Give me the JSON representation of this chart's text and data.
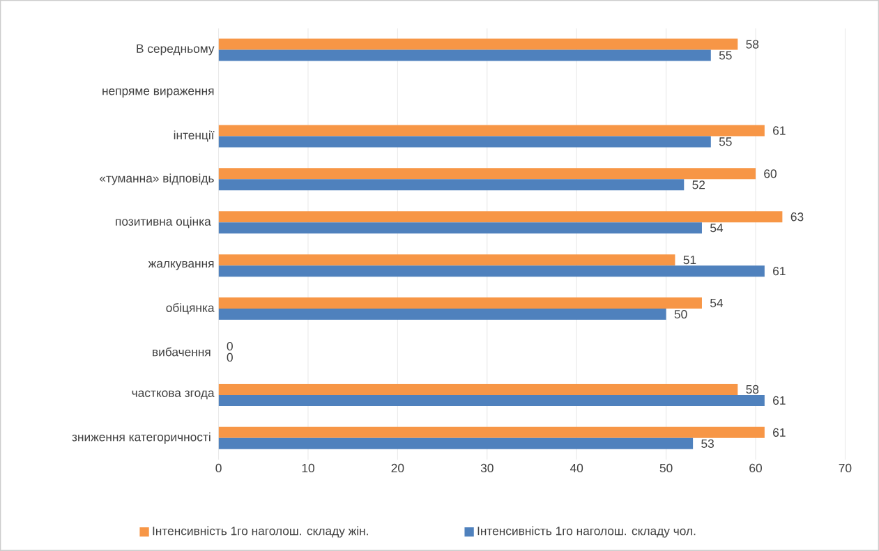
{
  "chart_data": {
    "type": "bar",
    "orientation": "horizontal",
    "categories": [
      "В середньому",
      "непряме вираження",
      "інтенції",
      "«туманна» відповідь",
      "позитивна оцінка ",
      "жалкування",
      "обіцянка",
      "вибачення ",
      "часткова згода",
      "зниження категоричності "
    ],
    "series": [
      {
        "name": "Інтенсивність 1го наголош. складу жін.",
        "color": "#f79646",
        "values": [
          58,
          null,
          61,
          60,
          63,
          51,
          54,
          0,
          58,
          61
        ]
      },
      {
        "name": "Інтенсивність 1го наголош. складу чол.",
        "color": "#4f81bd",
        "values": [
          55,
          null,
          55,
          52,
          54,
          61,
          50,
          0,
          61,
          53
        ]
      }
    ],
    "xlim": [
      0,
      70
    ],
    "xticks": [
      0,
      10,
      20,
      30,
      40,
      50,
      60,
      70
    ],
    "grid": "x",
    "legend": "bottom",
    "data_labels": true
  }
}
